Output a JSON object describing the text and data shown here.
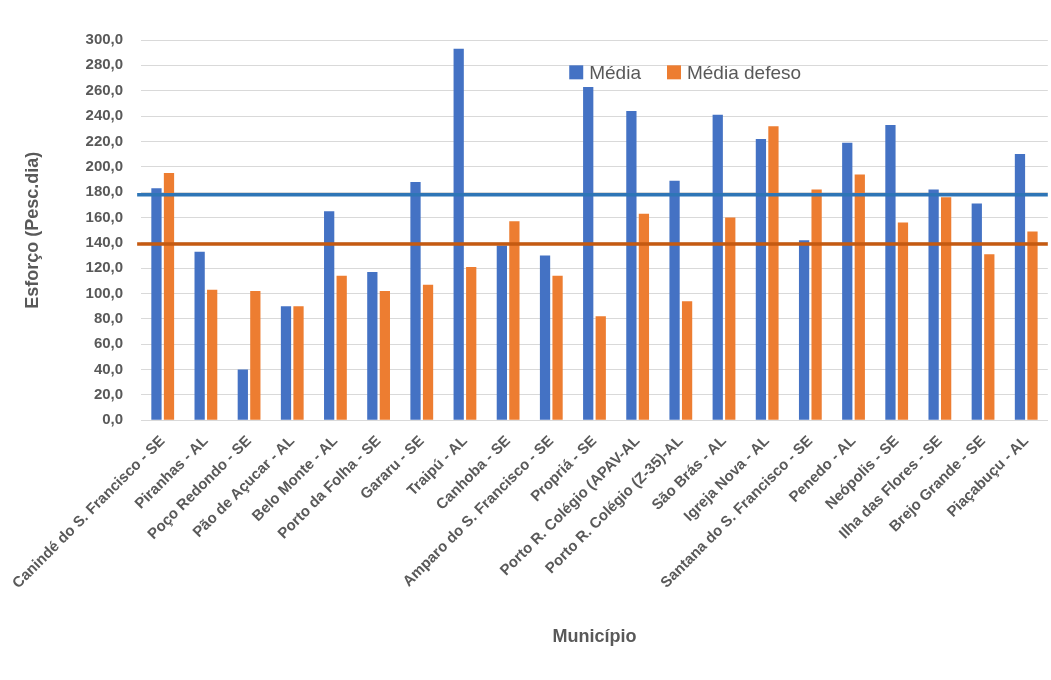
{
  "chart_data": {
    "type": "bar",
    "xlabel": "Município",
    "ylabel": "Esforço (Pesc.dia)",
    "categories": [
      "Canindé do S. Francisco - SE",
      "Piranhas - AL",
      "Poço Redondo - SE",
      "Pão de Açucar - AL",
      "Belo Monte - AL",
      "Porto da Folha - SE",
      "Gararu - SE",
      "Traipú - AL",
      "Canhoba - SE",
      "Amparo do S. Francisco - SE",
      "Propriá - SE",
      "Porto R. Colégio (APAV-AL",
      "Porto R. Colégio (Z-35)-AL",
      "São Brás - AL",
      "Igreja Nova - AL",
      "Santana do S. Francisco - SE",
      "Penedo - AL",
      "Neópolis - SE",
      "Ilha das Flores - SE",
      "Brejo Grande - SE",
      "Piaçabuçu - AL"
    ],
    "series": [
      {
        "name": "Média",
        "color": "#4472c4",
        "values": [
          183,
          133,
          40,
          90,
          165,
          117,
          188,
          293,
          138,
          130,
          263,
          244,
          189,
          241,
          222,
          142,
          219,
          233,
          182,
          171,
          210
        ]
      },
      {
        "name": "Média defeso",
        "color": "#ed7d31",
        "values": [
          195,
          103,
          102,
          90,
          114,
          102,
          107,
          121,
          157,
          114,
          82,
          163,
          94,
          160,
          232,
          182,
          194,
          156,
          176,
          131,
          149
        ]
      }
    ],
    "ylim": [
      0,
      300
    ],
    "yticks": [
      {
        "value": 0,
        "label": "0,0"
      },
      {
        "value": 20,
        "label": "20,0"
      },
      {
        "value": 40,
        "label": "40,0"
      },
      {
        "value": 60,
        "label": "60,0"
      },
      {
        "value": 80,
        "label": "80,0"
      },
      {
        "value": 100,
        "label": "100,0"
      },
      {
        "value": 120,
        "label": "120,0"
      },
      {
        "value": 140,
        "label": "140,0"
      },
      {
        "value": 160,
        "label": "160,0"
      },
      {
        "value": 180,
        "label": "180,0"
      },
      {
        "value": 200,
        "label": "200,0"
      },
      {
        "value": 220,
        "label": "220,0"
      },
      {
        "value": 240,
        "label": "240,0"
      },
      {
        "value": 260,
        "label": "260,0"
      },
      {
        "value": 280,
        "label": "280,0"
      },
      {
        "value": 300,
        "label": "300,0"
      }
    ],
    "ref_lines": [
      {
        "axis": "y",
        "value": 178,
        "color": "#2e75b6"
      },
      {
        "axis": "y",
        "value": 139,
        "color": "#c55a11"
      }
    ],
    "grid": "y",
    "legend": "top"
  }
}
